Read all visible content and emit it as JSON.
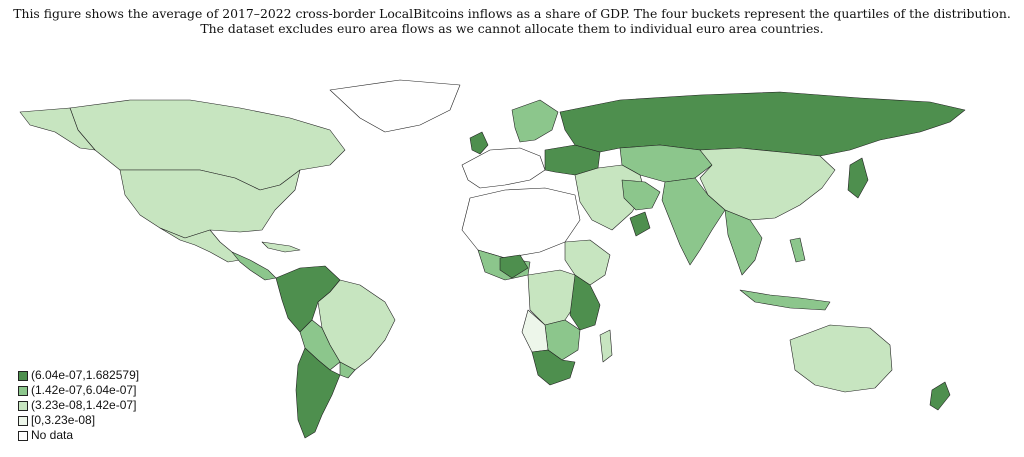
{
  "caption": {
    "line1": "This figure shows the average of 2017–2022 cross-border LocalBitcoins inflows as a share of GDP. The four buckets represent the quartiles of the distribution.",
    "line2": "The dataset excludes euro area flows as we cannot allocate them to individual euro area countries."
  },
  "legend": [
    {
      "label": "(6.04e-07,1.682579]",
      "color": "#4e8f4e"
    },
    {
      "label": "(1.42e-07,6.04e-07]",
      "color": "#8cc68c"
    },
    {
      "label": "(3.23e-08,1.42e-07]",
      "color": "#c7e5c0"
    },
    {
      "label": "[0,3.23e-08]",
      "color": "#edf6ea"
    },
    {
      "label": "No data",
      "color": "#ffffff"
    }
  ],
  "colors": {
    "q4": "#4e8f4e",
    "q3": "#8cc68c",
    "q2": "#c7e5c0",
    "q1": "#edf6ea",
    "none": "#ffffff",
    "border": "#222222"
  }
}
